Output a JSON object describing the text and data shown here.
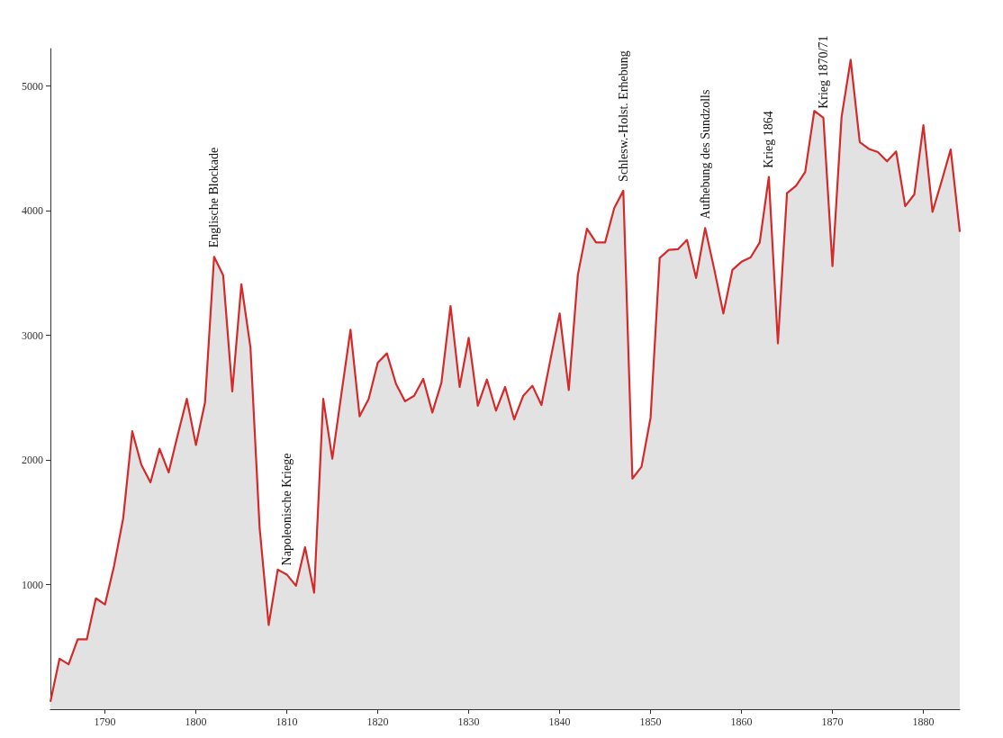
{
  "chart_data": {
    "type": "area",
    "x": [
      1784,
      1785,
      1786,
      1787,
      1788,
      1789,
      1790,
      1791,
      1792,
      1793,
      1794,
      1795,
      1796,
      1797,
      1798,
      1799,
      1800,
      1801,
      1802,
      1803,
      1804,
      1805,
      1806,
      1807,
      1808,
      1809,
      1810,
      1811,
      1812,
      1813,
      1814,
      1815,
      1816,
      1817,
      1818,
      1819,
      1820,
      1821,
      1822,
      1823,
      1824,
      1825,
      1826,
      1827,
      1828,
      1829,
      1830,
      1831,
      1832,
      1833,
      1834,
      1835,
      1836,
      1837,
      1838,
      1839,
      1840,
      1841,
      1842,
      1843,
      1844,
      1845,
      1846,
      1847,
      1848,
      1849,
      1850,
      1851,
      1852,
      1853,
      1854,
      1855,
      1856,
      1857,
      1858,
      1859,
      1860,
      1861,
      1862,
      1863,
      1864,
      1865,
      1866,
      1867,
      1868,
      1869,
      1870,
      1871,
      1872,
      1873,
      1874,
      1875,
      1876,
      1877,
      1878,
      1879,
      1880,
      1881,
      1882,
      1883,
      1884
    ],
    "series": [
      {
        "color": "#d42a2a",
        "values": [
          60,
          405,
          360,
          560,
          560,
          890,
          840,
          1150,
          1530,
          2230,
          1960,
          1820,
          2090,
          1900,
          2200,
          2490,
          2120,
          2460,
          3630,
          3480,
          2550,
          3410,
          2900,
          1460,
          675,
          1120,
          1080,
          990,
          1300,
          935,
          2490,
          2010,
          2530,
          3045,
          2350,
          2490,
          2780,
          2855,
          2610,
          2470,
          2515,
          2650,
          2380,
          2620,
          3235,
          2585,
          2980,
          2435,
          2645,
          2395,
          2585,
          2325,
          2515,
          2595,
          2440,
          2810,
          3175,
          2560,
          3485,
          3855,
          3745,
          3745,
          4020,
          4160,
          1850,
          1945,
          2340,
          3620,
          3685,
          3690,
          3765,
          3460,
          3860,
          3530,
          3175,
          3525,
          3590,
          3625,
          3745,
          4270,
          2935,
          4140,
          4200,
          4310,
          4800,
          4745,
          3555,
          4750,
          5210,
          4550,
          4495,
          4470,
          4395,
          4475,
          4035,
          4130,
          4685,
          3990,
          4235,
          4490,
          3830
        ]
      }
    ],
    "xlim": [
      1784,
      1884
    ],
    "xticks": [
      1790,
      1800,
      1810,
      1820,
      1830,
      1840,
      1850,
      1860,
      1870,
      1880
    ],
    "ylim": [
      0,
      5300
    ],
    "yticks": [
      1000,
      2000,
      3000,
      4000,
      5000
    ],
    "grid": false,
    "marker": "none",
    "line_style": "solid",
    "annotations": [
      {
        "text": "Englische Blockade",
        "x": 1802,
        "y": 3630
      },
      {
        "text": "Napoleonische Kriege",
        "x": 1810,
        "y": 1080
      },
      {
        "text": "Schlesw.-Holst. Erhebung",
        "x": 1847,
        "y": 4160
      },
      {
        "text": "Aufhebung des Sundzolls",
        "x": 1856,
        "y": 3860
      },
      {
        "text": "Krieg 1864",
        "x": 1863,
        "y": 4270
      },
      {
        "text": "Krieg 1870/71",
        "x": 1869,
        "y": 4745
      }
    ]
  }
}
